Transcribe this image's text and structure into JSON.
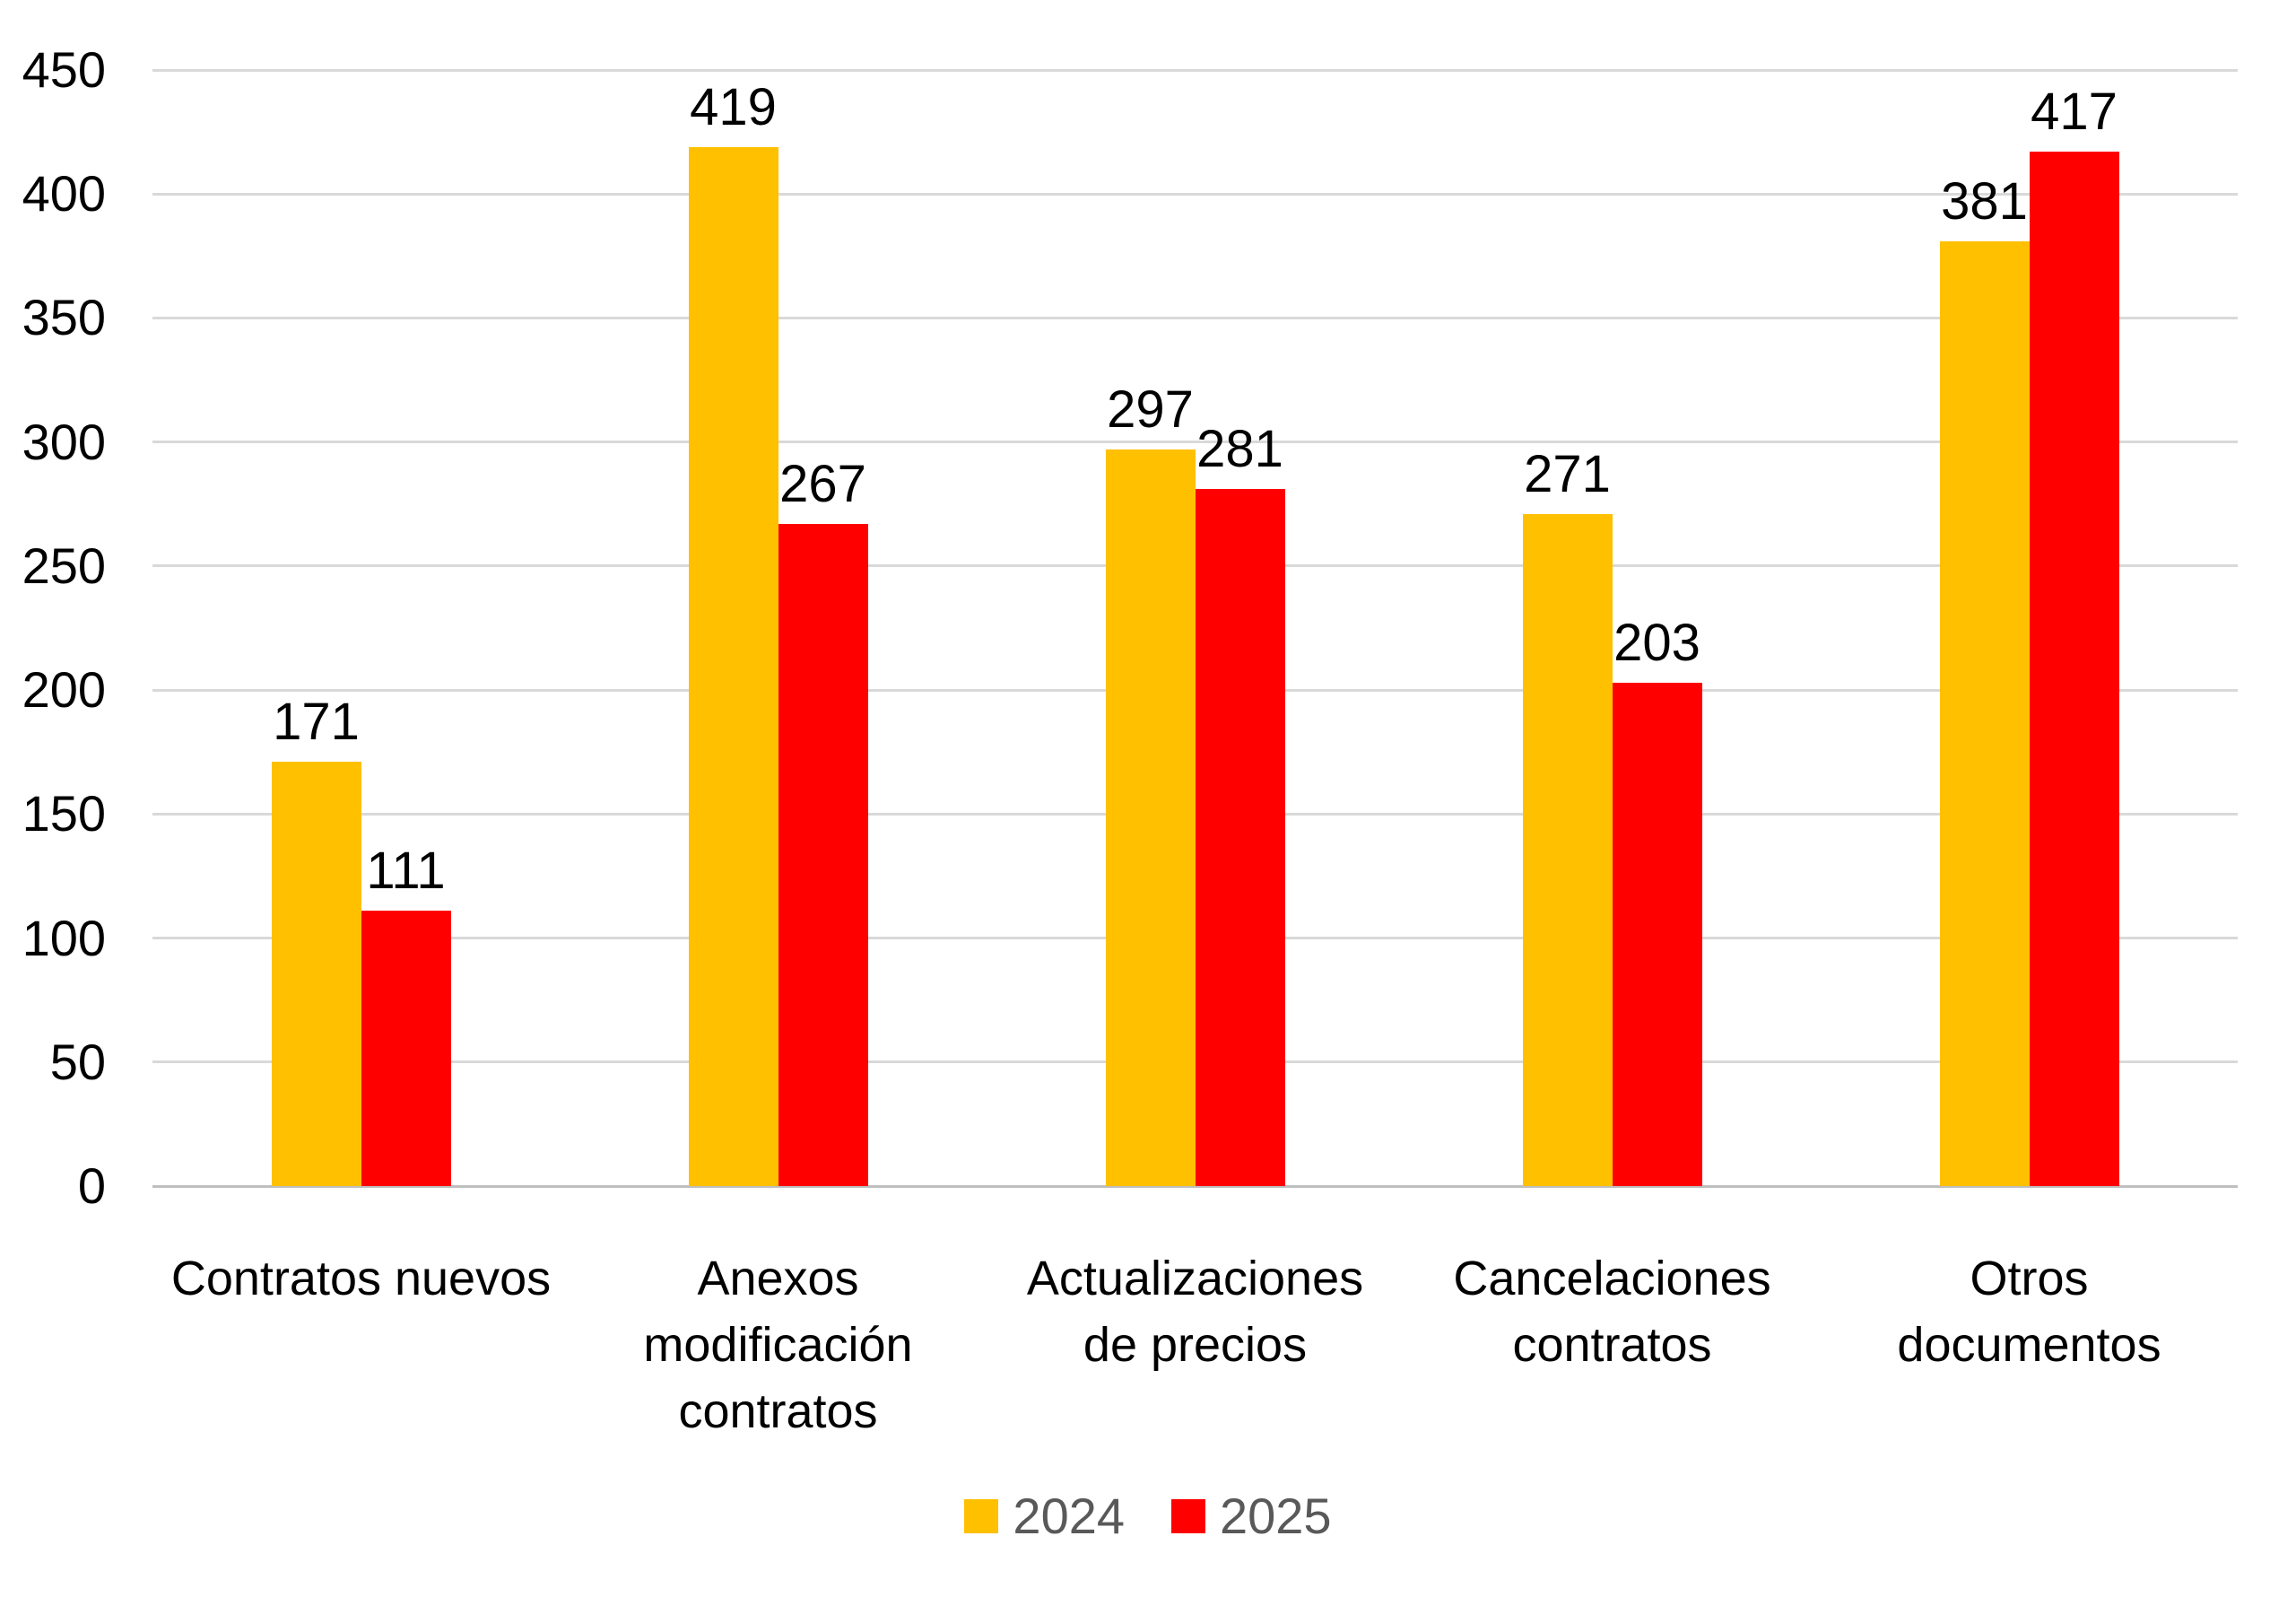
{
  "chart_data": {
    "type": "bar",
    "title": "",
    "categories": [
      {
        "label": "Contratos nuevos",
        "lines": [
          "Contratos nuevos"
        ]
      },
      {
        "label": "Anexos modificación contratos",
        "lines": [
          "Anexos",
          "modificación",
          "contratos"
        ]
      },
      {
        "label": "Actualizaciones de precios",
        "lines": [
          "Actualizaciones",
          "de precios"
        ]
      },
      {
        "label": "Cancelaciones contratos",
        "lines": [
          "Cancelaciones",
          "contratos"
        ]
      },
      {
        "label": "Otros documentos",
        "lines": [
          "Otros",
          "documentos"
        ]
      }
    ],
    "series": [
      {
        "name": "2024",
        "color": "#FFC000",
        "values": [
          171,
          419,
          297,
          271,
          381
        ]
      },
      {
        "name": "2025",
        "color": "#FF0000",
        "values": [
          111,
          267,
          281,
          203,
          417
        ]
      }
    ],
    "yticks": [
      0,
      50,
      100,
      150,
      200,
      250,
      300,
      350,
      400,
      450
    ],
    "ylim": [
      0,
      450
    ],
    "grid": true,
    "data_labels": true,
    "legend_position": "bottom",
    "colors": {
      "gridline": "#D9D9D9",
      "axis_line": "#BFBFBF",
      "label_text": "#000000",
      "legend_text": "#595959",
      "background": "#FFFFFF"
    }
  }
}
